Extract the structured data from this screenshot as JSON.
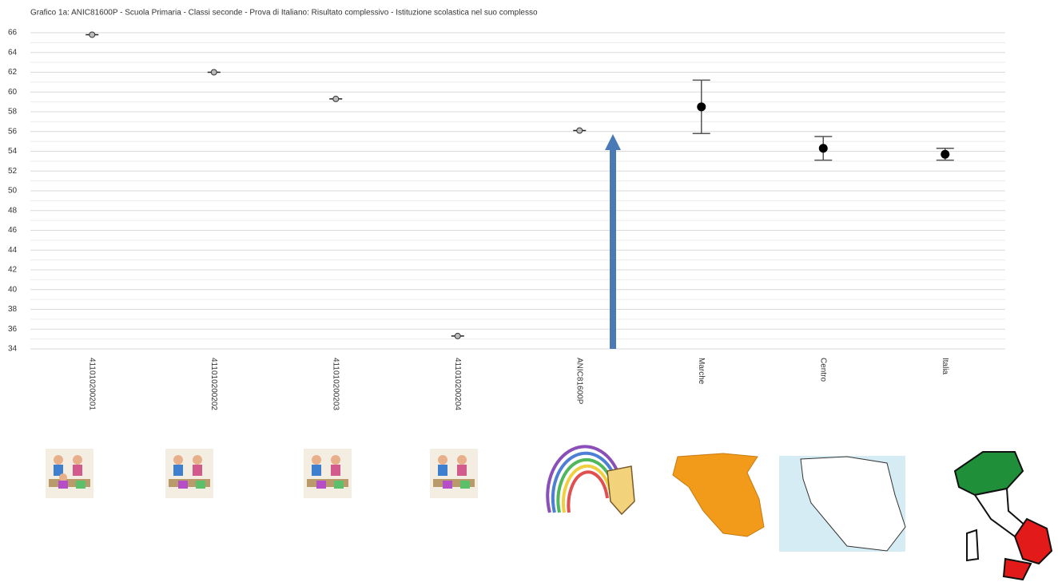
{
  "chart_data": {
    "type": "errorbar",
    "title": "Grafico 1a: ANIC81600P - Scuola Primaria - Classi seconde - Prova di Italiano: Risultato complessivo - Istituzione scolastica nel suo complesso",
    "categories": [
      "411010200201",
      "411010200202",
      "411010200203",
      "411010200204",
      "ANIC81600P",
      "Marche",
      "Centro",
      "Italia"
    ],
    "values": [
      65.8,
      62.0,
      59.3,
      35.3,
      56.1,
      58.5,
      54.3,
      53.7
    ],
    "errors": [
      0,
      0,
      0,
      0,
      0,
      2.7,
      1.2,
      0.6
    ],
    "color": "#000000",
    "ylim": [
      34,
      66
    ],
    "yticks": [
      34,
      36,
      38,
      40,
      42,
      44,
      46,
      48,
      50,
      52,
      54,
      56,
      58,
      60,
      62,
      64,
      66
    ],
    "grid": true
  }
}
